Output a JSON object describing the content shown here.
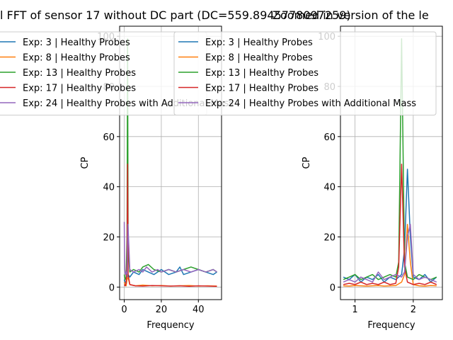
{
  "chart_data": [
    {
      "type": "line",
      "title": "l FFT of sensor 17 without DC part (DC=559.8945778097259)",
      "xlabel": "Frequency",
      "ylabel": "CP",
      "xlim": [
        -2.5,
        52.5
      ],
      "ylim": [
        -5,
        104
      ],
      "xticks": [
        0,
        20,
        40
      ],
      "yticks": [
        0,
        20,
        40,
        60,
        80,
        100
      ],
      "grid": true,
      "legend_placement": "top-left",
      "series": [
        {
          "name": "Exp: 3 | Healthy Probes",
          "color": "#1f77b4",
          "x": [
            0,
            0.5,
            1.0,
            1.5,
            2.0,
            3,
            5,
            8,
            10,
            13,
            16,
            20,
            24,
            28,
            30,
            32,
            36,
            40,
            44,
            48,
            50
          ],
          "y": [
            3,
            2,
            1.5,
            3,
            5,
            4,
            6,
            5,
            7,
            6,
            5,
            7,
            5,
            6,
            8,
            5,
            6,
            7,
            6,
            5,
            6
          ]
        },
        {
          "name": "Exp: 8 | Healthy Probes",
          "color": "#ff7f0e",
          "x": [
            0,
            0.5,
            1.0,
            1.5,
            2.0,
            3,
            6,
            10,
            15,
            20,
            25,
            30,
            35,
            40,
            45,
            50
          ],
          "y": [
            2,
            1,
            0.5,
            3,
            4,
            1,
            0.5,
            0.8,
            0.5,
            0.6,
            0.4,
            0.5,
            0.6,
            0.4,
            0.5,
            0.4
          ]
        },
        {
          "name": "Exp: 13 | Healthy Probes",
          "color": "#2ca02c",
          "x": [
            0,
            0.5,
            1.0,
            1.5,
            1.8,
            2.1,
            3,
            5,
            8,
            10,
            13,
            16,
            20,
            24,
            28,
            32,
            36,
            40,
            44,
            48,
            50
          ],
          "y": [
            5,
            3,
            4,
            20,
            99,
            15,
            6,
            7,
            6,
            8,
            9,
            7,
            6,
            7,
            6,
            7,
            8,
            7,
            6,
            7,
            6
          ]
        },
        {
          "name": "Exp: 17 | Healthy Probes",
          "color": "#d62728",
          "x": [
            0,
            0.5,
            1.0,
            1.5,
            1.8,
            2.1,
            3,
            6,
            10,
            15,
            20,
            25,
            30,
            35,
            40,
            45,
            50
          ],
          "y": [
            1,
            0.5,
            1.5,
            10,
            49,
            5,
            1,
            0.5,
            0.4,
            0.6,
            0.5,
            0.4,
            0.5,
            0.3,
            0.5,
            0.4,
            0.3
          ]
        },
        {
          "name": "Exp: 24 | Healthy Probes with Additional Mass",
          "color": "#9467bd",
          "x": [
            0,
            0.1,
            0.3,
            0.6,
            1.0,
            1.5,
            2.0,
            3,
            5,
            8,
            10,
            12,
            15,
            18,
            20,
            24,
            28,
            32,
            36,
            40,
            44,
            48,
            50
          ],
          "y": [
            26,
            15,
            7,
            5,
            6,
            5,
            25,
            7,
            6,
            7,
            6,
            8,
            6,
            7,
            6,
            7,
            6,
            7,
            6,
            7,
            6,
            7,
            6
          ]
        }
      ]
    },
    {
      "type": "line",
      "title": "Zoomed in version of the le",
      "xlabel": "Frequency",
      "ylabel": "CP",
      "xlim": [
        0.75,
        2.5
      ],
      "ylim": [
        -5,
        104
      ],
      "xticks": [
        1,
        2
      ],
      "yticks": [
        0,
        20,
        40,
        60,
        80,
        100
      ],
      "grid": true,
      "legend_placement": "top-center",
      "series": [
        {
          "name": "Exp: 3 | Healthy Probes",
          "color": "#1f77b4",
          "x": [
            0.8,
            0.9,
            1.0,
            1.1,
            1.2,
            1.3,
            1.4,
            1.5,
            1.6,
            1.7,
            1.8,
            1.85,
            1.9,
            1.95,
            2.0,
            2.1,
            2.2,
            2.3,
            2.4
          ],
          "y": [
            4,
            3,
            5,
            2,
            4,
            3,
            5,
            2,
            4,
            3,
            5,
            15,
            47,
            20,
            4,
            3,
            5,
            2,
            4
          ]
        },
        {
          "name": "Exp: 8 | Healthy Probes",
          "color": "#ff7f0e",
          "x": [
            0.8,
            0.9,
            1.0,
            1.1,
            1.2,
            1.3,
            1.4,
            1.5,
            1.6,
            1.7,
            1.8,
            1.85,
            1.9,
            1.95,
            2.0,
            2.1,
            2.2,
            2.3,
            2.4
          ],
          "y": [
            0.5,
            0.4,
            0.6,
            0.5,
            0.4,
            0.5,
            0.6,
            0.4,
            0.5,
            0.6,
            2,
            5,
            25,
            10,
            1,
            0.5,
            0.4,
            0.6,
            0.5
          ]
        },
        {
          "name": "Exp: 13 | Healthy Probes",
          "color": "#2ca02c",
          "x": [
            0.8,
            0.9,
            1.0,
            1.1,
            1.2,
            1.3,
            1.4,
            1.5,
            1.6,
            1.7,
            1.75,
            1.8,
            1.85,
            1.9,
            2.0,
            2.1,
            2.2,
            2.3,
            2.4
          ],
          "y": [
            3,
            4,
            5,
            3,
            4,
            5,
            3,
            4,
            5,
            4,
            10,
            99,
            10,
            4,
            3,
            5,
            4,
            3,
            4
          ]
        },
        {
          "name": "Exp: 17 | Healthy Probes",
          "color": "#d62728",
          "x": [
            0.8,
            0.9,
            1.0,
            1.1,
            1.2,
            1.3,
            1.4,
            1.5,
            1.6,
            1.7,
            1.75,
            1.8,
            1.85,
            1.9,
            2.0,
            2.1,
            2.2,
            2.3,
            2.4
          ],
          "y": [
            1,
            1.5,
            1,
            2,
            1,
            1.5,
            1,
            2,
            1,
            1.5,
            8,
            49,
            8,
            2,
            1,
            1.5,
            1,
            2,
            1
          ]
        },
        {
          "name": "Exp: 24 | Healthy Probes with Additional Mass",
          "color": "#9467bd",
          "x": [
            0.8,
            0.9,
            1.0,
            1.1,
            1.2,
            1.3,
            1.4,
            1.5,
            1.6,
            1.7,
            1.8,
            1.85,
            1.9,
            1.95,
            2.0,
            2.1,
            2.2,
            2.3,
            2.4
          ],
          "y": [
            2,
            3,
            2,
            4,
            3,
            2,
            6,
            3,
            4,
            5,
            4,
            6,
            20,
            25,
            5,
            3,
            4,
            3,
            2
          ]
        }
      ]
    }
  ]
}
